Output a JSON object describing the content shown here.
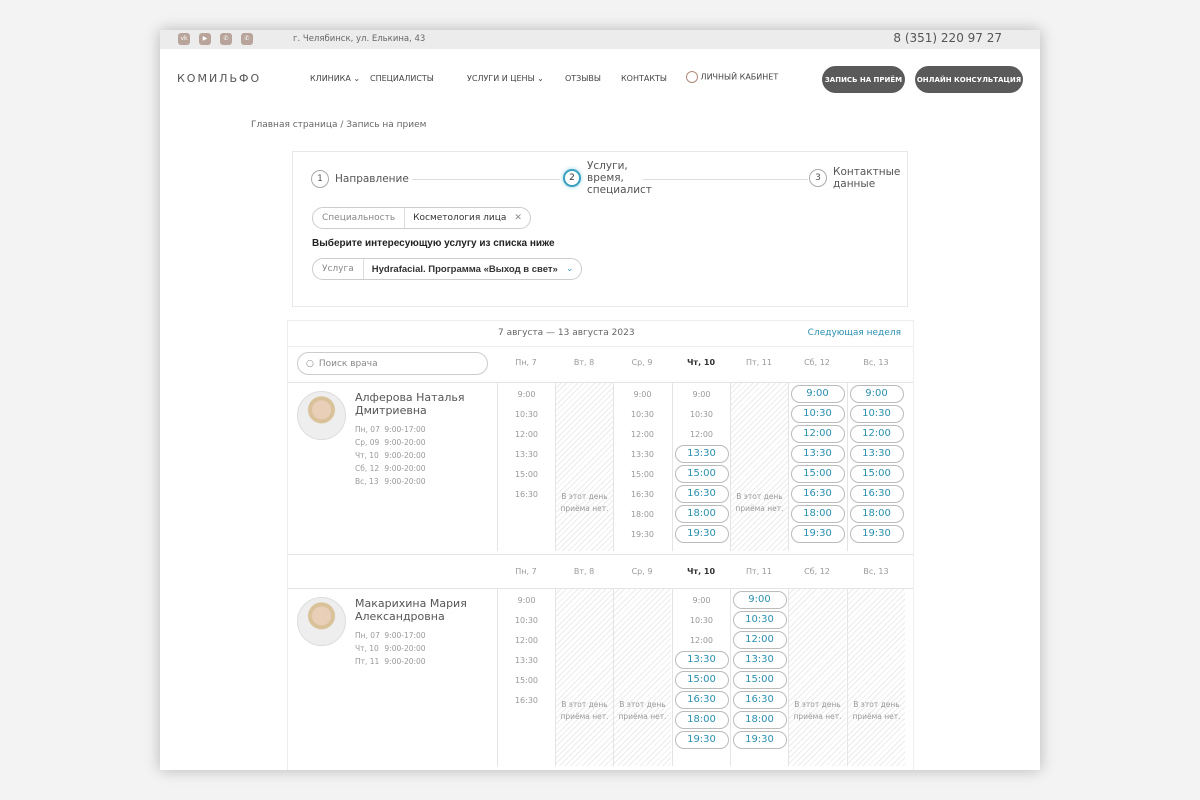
{
  "topbar": {
    "socials": [
      "vk-icon",
      "youtube-icon",
      "viber-icon",
      "whatsapp-icon"
    ],
    "address": "г. Челябинск, ул. Елькина, 43",
    "phone": "8 (351) 220 97 27"
  },
  "nav": {
    "logo": "КОМИЛЬФО",
    "items": [
      "КЛИНИКА",
      "СПЕЦИАЛИСТЫ",
      "УСЛУГИ И ЦЕНЫ",
      "ОТЗЫВЫ",
      "КОНТАКТЫ",
      "ЛИЧНЫЙ КАБИНЕТ"
    ],
    "book": "ЗАПИСЬ НА ПРИЁМ",
    "online": "ОНЛАЙН КОНСУЛЬТАЦИЯ"
  },
  "breadcrumb": "Главная страница / Запись на прием",
  "wizard": {
    "steps": [
      {
        "n": "1",
        "label": "Направление"
      },
      {
        "n": "2",
        "label": "Услуги, время, специалист"
      },
      {
        "n": "3",
        "label": "Контактные данные"
      }
    ],
    "specialty_label": "Специальность",
    "specialty_value": "Косметология лица",
    "prompt": "Выберите интересующую услугу из списка ниже",
    "service_label": "Услуга",
    "service_value": "Hydrafacial. Программа «Выход в свет»"
  },
  "schedule": {
    "range": "7 августа — 13 августа 2023",
    "next": "Следующая неделя",
    "search_placeholder": "Поиск врача",
    "days": [
      "Пн, 7",
      "Вт, 8",
      "Ср, 9",
      "Чт, 10",
      "Пт, 11",
      "Сб, 12",
      "Вс, 13"
    ],
    "today_index": 3,
    "none_text": "В этот день приёма нет.",
    "accent": "#2b8fb0",
    "doctors": [
      {
        "name": "Алферова Наталья Дмитриевна",
        "hours": [
          [
            "Пн, 07",
            "9:00-17:00"
          ],
          [
            "Ср, 09",
            "9:00-20:00"
          ],
          [
            "Чт, 10",
            "9:00-20:00"
          ],
          [
            "Сб, 12",
            "9:00-20:00"
          ],
          [
            "Вс, 13",
            "9:00-20:00"
          ]
        ],
        "days": [
          {
            "times": [
              "9:00",
              "10:30",
              "12:00",
              "13:30",
              "15:00",
              "16:30"
            ],
            "available": []
          },
          {
            "none": true
          },
          {
            "times": [
              "9:00",
              "10:30",
              "12:00",
              "13:30",
              "15:00",
              "16:30",
              "18:00",
              "19:30"
            ],
            "available": []
          },
          {
            "times": [
              "9:00",
              "10:30",
              "12:00",
              "13:30",
              "15:00",
              "16:30",
              "18:00",
              "19:30"
            ],
            "available": [
              "13:30",
              "15:00",
              "16:30",
              "18:00",
              "19:30"
            ]
          },
          {
            "none": true
          },
          {
            "times": [
              "9:00",
              "10:30",
              "12:00",
              "13:30",
              "15:00",
              "16:30",
              "18:00",
              "19:30"
            ],
            "available": [
              "9:00",
              "10:30",
              "12:00",
              "13:30",
              "15:00",
              "16:30",
              "18:00",
              "19:30"
            ]
          },
          {
            "times": [
              "9:00",
              "10:30",
              "12:00",
              "13:30",
              "15:00",
              "16:30",
              "18:00",
              "19:30"
            ],
            "available": [
              "9:00",
              "10:30",
              "12:00",
              "13:30",
              "15:00",
              "16:30",
              "18:00",
              "19:30"
            ]
          }
        ]
      },
      {
        "name": "Макарихина Мария Александровна",
        "hours": [
          [
            "Пн, 07",
            "9:00-17:00"
          ],
          [
            "Чт, 10",
            "9:00-20:00"
          ],
          [
            "Пт, 11",
            "9:00-20:00"
          ]
        ],
        "days": [
          {
            "times": [
              "9:00",
              "10:30",
              "12:00",
              "13:30",
              "15:00",
              "16:30"
            ],
            "available": []
          },
          {
            "none": true
          },
          {
            "none": true
          },
          {
            "times": [
              "9:00",
              "10:30",
              "12:00",
              "13:30",
              "15:00",
              "16:30",
              "18:00",
              "19:30"
            ],
            "available": [
              "13:30",
              "15:00",
              "16:30",
              "18:00",
              "19:30"
            ]
          },
          {
            "times": [
              "9:00",
              "10:30",
              "12:00",
              "13:30",
              "15:00",
              "16:30",
              "18:00",
              "19:30"
            ],
            "available": [
              "9:00",
              "10:30",
              "12:00",
              "13:30",
              "15:00",
              "16:30",
              "18:00",
              "19:30"
            ]
          },
          {
            "none": true
          },
          {
            "none": true
          }
        ]
      }
    ]
  }
}
